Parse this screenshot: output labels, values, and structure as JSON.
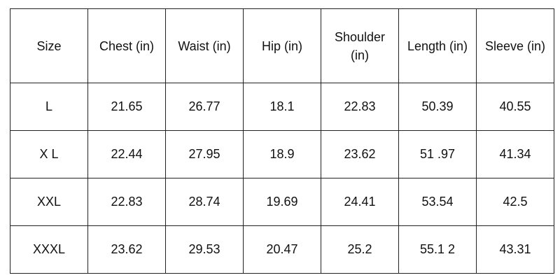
{
  "table": {
    "header": [
      "Size",
      "Chest (in)",
      "Waist (in)",
      "Hip (in)",
      "Shoulder (in)",
      "Length (in)",
      "Sleeve (in)"
    ],
    "rows": [
      [
        "L",
        "21.65",
        "26.77",
        "18.1",
        "22.83",
        "50.39",
        "40.55"
      ],
      [
        "X L",
        "22.44",
        "27.95",
        "18.9",
        "23.62",
        "51 .97",
        "41.34"
      ],
      [
        "XXL",
        "22.83",
        "28.74",
        "19.69",
        "24.41",
        "53.54",
        "42.5"
      ],
      [
        "XXXL",
        "23.62",
        "29.53",
        "20.47",
        "25.2",
        "55.1 2",
        "43.31"
      ]
    ]
  }
}
